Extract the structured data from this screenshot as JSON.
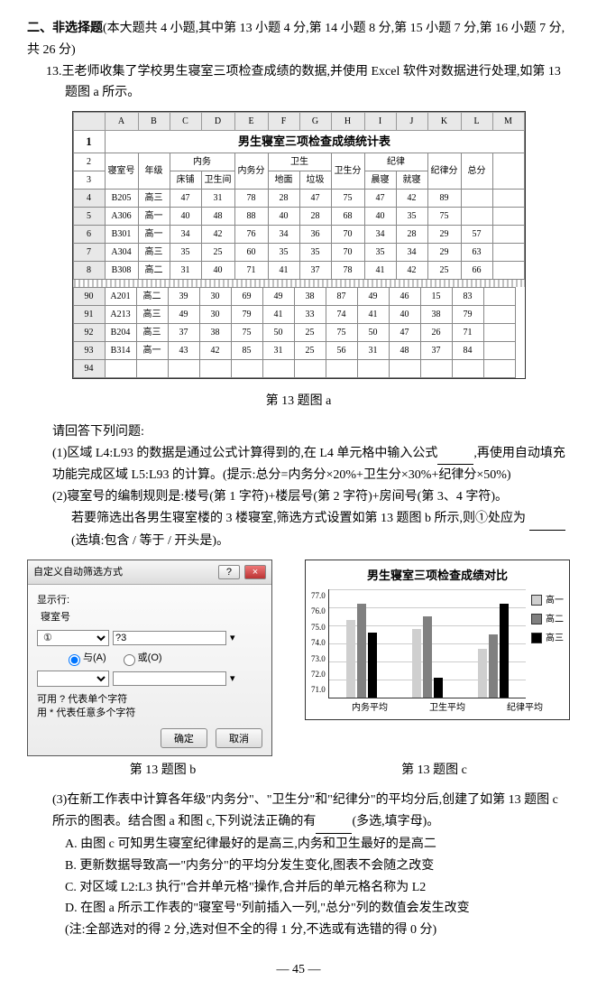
{
  "section": {
    "title": "二、非选择题",
    "desc": "(本大题共 4 小题,其中第 13 小题 4 分,第 14 小题 8 分,第 15 小题 7 分,第 16 小题 7 分,共 26 分)"
  },
  "q13": {
    "num": "13.",
    "intro": "王老师收集了学校男生寝室三项检查成绩的数据,并使用 Excel 软件对数据进行处理,如第 13 题图 a 所示。",
    "caption_a": "第 13 题图 a",
    "caption_b": "第 13 题图 b",
    "caption_c": "第 13 题图 c",
    "prompt": "请回答下列问题:",
    "p1": "(1)区域 L4:L93 的数据是通过公式计算得到的,在 L4 单元格中输入公式",
    "p1b": ",再使用自动填充功能完成区域 L5:L93 的计算。(提示:总分=内务分×20%+卫生分×30%+纪律分×50%)",
    "p2a": "(2)寝室号的编制规则是:楼号(第 1 字符)+楼层号(第 2 字符)+房间号(第 3、4 字符)。",
    "p2b": "若要筛选出各男生寝室楼的 3 楼寝室,筛选方式设置如第 13 题图 b 所示,则①处应为",
    "p2c": "(选填:包含 / 等于 / 开头是)。",
    "p3a": "(3)在新工作表中计算各年级\"内务分\"、\"卫生分\"和\"纪律分\"的平均分后,创建了如第 13 题图 c 所示的图表。结合图 a 和图 c,下列说法正确的有",
    "p3b": "(多选,填字母)。",
    "opts": {
      "A": "A. 由图 c 可知男生寝室纪律最好的是高三,内务和卫生最好的是高二",
      "B": "B. 更新数据导致高一\"内务分\"的平均分发生变化,图表不会随之改变",
      "C": "C. 对区域 L2:L3 执行\"合并单元格\"操作,合并后的单元格名称为 L2",
      "D": "D. 在图 a 所示工作表的\"寝室号\"列前插入一列,\"总分\"列的数值会发生改变"
    },
    "note": "(注:全部选对的得 2 分,选对但不全的得 1 分,不选或有选错的得 0 分)"
  },
  "excel": {
    "cols": [
      "",
      "A",
      "B",
      "C",
      "D",
      "E",
      "F",
      "G",
      "H",
      "I",
      "J",
      "K",
      "L",
      "M"
    ],
    "title": "男生寝室三项检查成绩统计表",
    "hdr1": [
      "寝室号",
      "年级",
      "内务",
      "",
      "内务分",
      "卫生",
      "",
      "卫生分",
      "纪律",
      "",
      "纪律分",
      "总分"
    ],
    "hdr2": [
      "",
      "",
      "床铺",
      "卫生间",
      "",
      "地面",
      "垃圾",
      "",
      "晨寝",
      "就寝",
      "",
      ""
    ],
    "rows_top": [
      [
        "4",
        "B205",
        "高三",
        "47",
        "31",
        "78",
        "28",
        "47",
        "75",
        "47",
        "42",
        "89",
        ""
      ],
      [
        "5",
        "A306",
        "高一",
        "40",
        "48",
        "88",
        "40",
        "28",
        "68",
        "40",
        "35",
        "75",
        ""
      ],
      [
        "6",
        "B301",
        "高一",
        "34",
        "42",
        "76",
        "34",
        "36",
        "70",
        "34",
        "28",
        "29",
        "57"
      ],
      [
        "7",
        "A304",
        "高三",
        "35",
        "25",
        "60",
        "35",
        "35",
        "70",
        "35",
        "34",
        "29",
        "63"
      ],
      [
        "8",
        "B308",
        "高二",
        "31",
        "40",
        "71",
        "41",
        "37",
        "78",
        "41",
        "42",
        "25",
        "66"
      ]
    ],
    "rows_bot": [
      [
        "90",
        "A201",
        "高二",
        "39",
        "30",
        "69",
        "49",
        "38",
        "87",
        "49",
        "46",
        "15",
        "83"
      ],
      [
        "91",
        "A213",
        "高三",
        "49",
        "30",
        "79",
        "41",
        "33",
        "74",
        "41",
        "40",
        "38",
        "79"
      ],
      [
        "92",
        "B204",
        "高三",
        "37",
        "38",
        "75",
        "50",
        "25",
        "75",
        "50",
        "47",
        "26",
        "71"
      ],
      [
        "93",
        "B314",
        "高一",
        "43",
        "42",
        "85",
        "31",
        "25",
        "56",
        "31",
        "48",
        "37",
        "84"
      ],
      [
        "94",
        "",
        "",
        "",
        "",
        "",
        "",
        "",
        "",
        "",
        "",
        "",
        "",
        ""
      ]
    ]
  },
  "dialog": {
    "title": "自定义自动筛选方式",
    "label_show": "显示行:",
    "label_field": "寝室号",
    "dd1": "①",
    "val1": "?3",
    "radio_and": "与(A)",
    "radio_or": "或(O)",
    "hint1": "可用 ? 代表单个字符",
    "hint2": "用 * 代表任意多个字符",
    "ok": "确定",
    "cancel": "取消"
  },
  "chart": {
    "title": "男生寝室三项检查成绩对比",
    "yticks": [
      "77.0",
      "76.0",
      "75.0",
      "74.0",
      "73.0",
      "72.0",
      "71.0"
    ],
    "ylim": [
      71,
      77
    ],
    "categories": [
      "内务平均",
      "卫生平均",
      "纪律平均"
    ],
    "series": [
      {
        "name": "高一",
        "color": "#cfcfcf",
        "values": [
          75.3,
          74.8,
          73.7
        ]
      },
      {
        "name": "高二",
        "color": "#808080",
        "values": [
          76.2,
          75.5,
          74.5
        ]
      },
      {
        "name": "高三",
        "color": "#000000",
        "values": [
          74.6,
          72.1,
          76.2
        ]
      }
    ]
  },
  "page": "— 45 —"
}
